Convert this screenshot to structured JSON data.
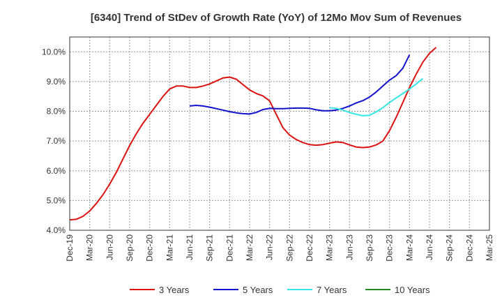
{
  "chart_data": {
    "type": "line",
    "title": "[6340]  Trend of StDev of Growth Rate (YoY) of 12Mo Mov Sum of Revenues",
    "xlabel": "",
    "ylabel": "",
    "ylim": [
      4.0,
      10.5
    ],
    "y_ticks": [
      4.0,
      5.0,
      6.0,
      7.0,
      8.0,
      9.0,
      10.0
    ],
    "y_tick_labels": [
      "4.0%",
      "5.0%",
      "6.0%",
      "7.0%",
      "8.0%",
      "9.0%",
      "10.0%"
    ],
    "x_tick_labels": [
      "Dec-19",
      "Mar-20",
      "Jun-20",
      "Sep-20",
      "Dec-20",
      "Mar-21",
      "Jun-21",
      "Sep-21",
      "Dec-21",
      "Mar-22",
      "Jun-22",
      "Sep-22",
      "Dec-22",
      "Mar-23",
      "Jun-23",
      "Sep-23",
      "Dec-23",
      "Mar-24",
      "Jun-24",
      "Sep-24",
      "Dec-24",
      "Mar-25"
    ],
    "x_start": "Dec-19",
    "grid": true,
    "legend_position": "bottom",
    "series": [
      {
        "name": "3 Years",
        "color": "#dd1111",
        "start_index": 0,
        "values": [
          4.35,
          4.37,
          4.47,
          4.65,
          4.9,
          5.2,
          5.55,
          5.95,
          6.4,
          6.85,
          7.25,
          7.6,
          7.9,
          8.2,
          8.5,
          8.75,
          8.85,
          8.85,
          8.8,
          8.8,
          8.85,
          8.92,
          9.02,
          9.12,
          9.15,
          9.08,
          8.9,
          8.72,
          8.6,
          8.52,
          8.35,
          7.9,
          7.45,
          7.2,
          7.05,
          6.95,
          6.88,
          6.86,
          6.88,
          6.93,
          6.97,
          6.95,
          6.87,
          6.8,
          6.78,
          6.8,
          6.87,
          7.0,
          7.35,
          7.8,
          8.3,
          8.8,
          9.25,
          9.65,
          9.95,
          10.15
        ]
      },
      {
        "name": "5 Years",
        "color": "#1111cc",
        "start_index": 18,
        "values": [
          8.18,
          8.2,
          8.18,
          8.14,
          8.09,
          8.04,
          7.99,
          7.95,
          7.92,
          7.91,
          7.96,
          8.06,
          8.1,
          8.09,
          8.09,
          8.1,
          8.11,
          8.11,
          8.1,
          8.05,
          8.02,
          8.02,
          8.04,
          8.1,
          8.18,
          8.28,
          8.36,
          8.48,
          8.65,
          8.85,
          9.05,
          9.2,
          9.45,
          9.9
        ]
      },
      {
        "name": "7 Years",
        "color": "#33e5e5",
        "start_index": 39,
        "values": [
          8.12,
          8.1,
          8.04,
          7.96,
          7.9,
          7.85,
          7.87,
          7.98,
          8.12,
          8.3,
          8.45,
          8.6,
          8.75,
          8.92,
          9.1
        ]
      },
      {
        "name": "10 Years",
        "color": "#228822",
        "start_index": 0,
        "values": []
      }
    ]
  }
}
